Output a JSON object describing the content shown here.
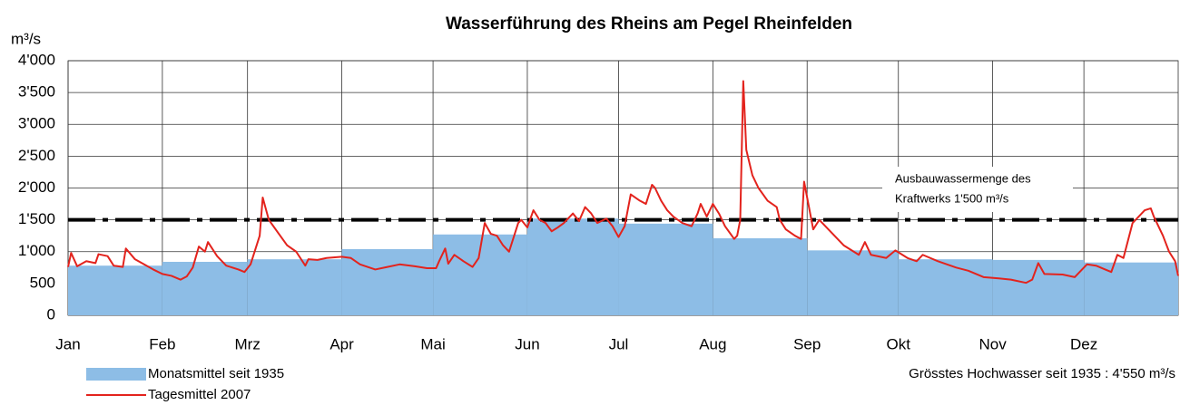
{
  "chart_data": {
    "type": "combo",
    "title": "Wasserführung des Rheins am Pegel Rheinfelden",
    "y_label": "m³/s",
    "xlim": [
      0,
      365
    ],
    "xticks": [
      {
        "value": 0,
        "label": "Jan"
      },
      {
        "value": 31,
        "label": "Feb"
      },
      {
        "value": 59,
        "label": "Mrz"
      },
      {
        "value": 90,
        "label": "Apr"
      },
      {
        "value": 120,
        "label": "Mai"
      },
      {
        "value": 151,
        "label": "Jun"
      },
      {
        "value": 181,
        "label": "Jul"
      },
      {
        "value": 212,
        "label": "Aug"
      },
      {
        "value": 243,
        "label": "Sep"
      },
      {
        "value": 273,
        "label": "Okt"
      },
      {
        "value": 304,
        "label": "Nov"
      },
      {
        "value": 334,
        "label": "Dez"
      }
    ],
    "ylim": [
      0,
      4000
    ],
    "yticks": [
      0,
      500,
      {
        "value": 1000,
        "label": "1'000"
      },
      {
        "value": 1500,
        "label": "1'500"
      },
      {
        "value": 2000,
        "label": "2'000"
      },
      {
        "value": 2500,
        "label": "2'500"
      },
      {
        "value": 3000,
        "label": "3'000"
      },
      {
        "value": 3500,
        "label": "3'500"
      },
      {
        "value": 4000,
        "label": "4'000"
      }
    ],
    "grid": true,
    "series": [
      {
        "name": "Monatsmittel seit 1935",
        "type": "step",
        "color": "#8dbde6",
        "values": [
          780,
          840,
          880,
          1040,
          1270,
          1520,
          1440,
          1210,
          1020,
          880,
          870,
          830
        ]
      },
      {
        "name": "Tagesmittel 2007",
        "type": "line",
        "color": "#e3231d",
        "x": [
          0,
          1,
          3,
          6,
          9,
          10,
          13,
          15,
          18,
          19,
          22,
          25,
          28,
          31,
          34,
          37,
          39,
          41,
          43,
          45,
          46,
          49,
          52,
          56,
          58,
          60,
          63,
          64,
          66,
          69,
          72,
          75,
          78,
          79,
          82,
          85,
          90,
          93,
          96,
          101,
          105,
          109,
          114,
          118,
          121,
          122,
          124,
          125,
          127,
          130,
          133,
          135,
          137,
          139,
          141,
          143,
          145,
          148,
          149,
          151,
          153,
          155,
          157,
          159,
          161,
          163,
          166,
          168,
          170,
          172,
          174,
          177,
          179,
          181,
          183,
          185,
          188,
          190,
          192,
          193,
          195,
          197,
          199,
          202,
          205,
          207,
          208,
          210,
          212,
          214,
          216,
          219,
          220,
          221,
          222,
          223,
          225,
          227,
          230,
          233,
          234,
          236,
          239,
          241,
          242,
          245,
          247,
          255,
          260,
          262,
          264,
          269,
          272,
          276,
          279,
          281,
          286,
          292,
          296,
          301,
          306,
          310,
          315,
          317,
          319,
          321,
          327,
          331,
          333,
          335,
          338,
          341,
          343,
          345,
          347,
          350,
          354,
          356,
          357,
          360,
          362,
          364,
          365
        ],
        "values": [
          760,
          980,
          770,
          850,
          820,
          960,
          930,
          780,
          760,
          1050,
          880,
          800,
          720,
          650,
          620,
          560,
          610,
          750,
          1080,
          1000,
          1150,
          930,
          780,
          720,
          680,
          800,
          1250,
          1850,
          1500,
          1300,
          1100,
          1000,
          780,
          880,
          870,
          900,
          920,
          900,
          800,
          720,
          760,
          800,
          770,
          740,
          740,
          850,
          1050,
          810,
          950,
          850,
          760,
          900,
          1450,
          1280,
          1250,
          1100,
          1000,
          1450,
          1500,
          1380,
          1650,
          1500,
          1450,
          1320,
          1380,
          1450,
          1600,
          1480,
          1700,
          1600,
          1450,
          1520,
          1400,
          1230,
          1400,
          1900,
          1800,
          1750,
          2050,
          2000,
          1800,
          1650,
          1550,
          1450,
          1400,
          1600,
          1750,
          1550,
          1750,
          1600,
          1400,
          1200,
          1250,
          1500,
          3680,
          2600,
          2200,
          2000,
          1800,
          1700,
          1500,
          1350,
          1250,
          1200,
          2100,
          1350,
          1500,
          1100,
          950,
          1150,
          950,
          900,
          1020,
          900,
          850,
          950,
          850,
          750,
          700,
          600,
          580,
          560,
          510,
          560,
          820,
          650,
          640,
          600,
          700,
          800,
          780,
          720,
          680,
          950,
          900,
          1450,
          1650,
          1680,
          1550,
          1250,
          1000,
          850,
          620
        ]
      }
    ],
    "reference_line": {
      "value": 1500,
      "color": "#000000"
    },
    "annotation": [
      "Ausbauwassermenge des",
      "Kraftwerks 1'500 m³/s"
    ],
    "footnote": "Grösstes Hochwasser seit 1935 : 4'550   m³/s"
  }
}
